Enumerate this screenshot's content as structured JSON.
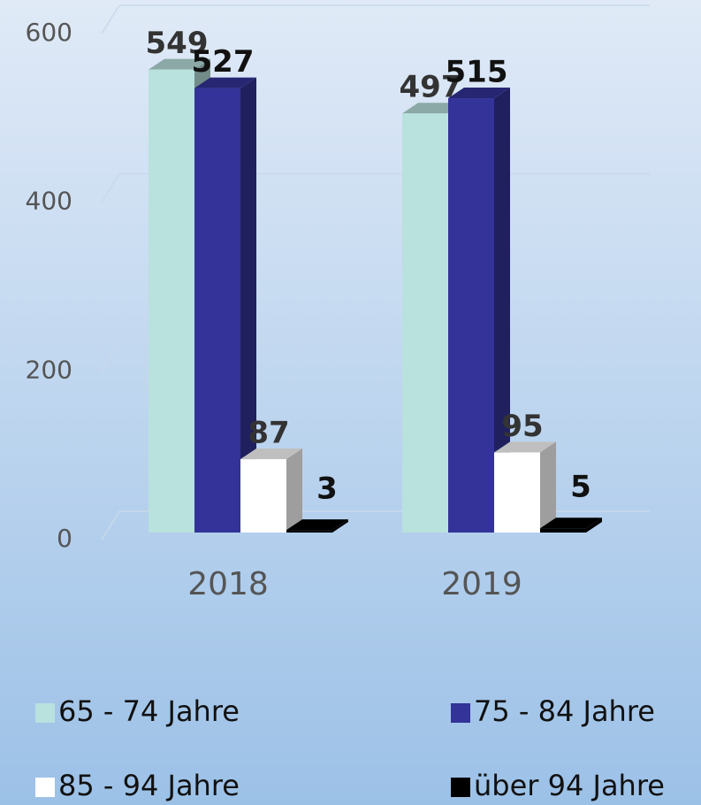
{
  "chart_data": {
    "type": "bar",
    "categories": [
      "2018",
      "2019"
    ],
    "series": [
      {
        "name": "65 - 74 Jahre",
        "color": "#b9e1de",
        "values": [
          549,
          497
        ]
      },
      {
        "name": "75 - 84 Jahre",
        "color": "#333399",
        "values": [
          527,
          515
        ]
      },
      {
        "name": "85 - 94 Jahre",
        "color": "#ffffff",
        "values": [
          87,
          95
        ]
      },
      {
        "name": "über 94 Jahre",
        "color": "#000000",
        "values": [
          3,
          5
        ]
      }
    ],
    "ylim": [
      0,
      600
    ],
    "yticks": [
      0,
      200,
      400,
      600
    ],
    "grid": true,
    "legend": "bottom"
  }
}
